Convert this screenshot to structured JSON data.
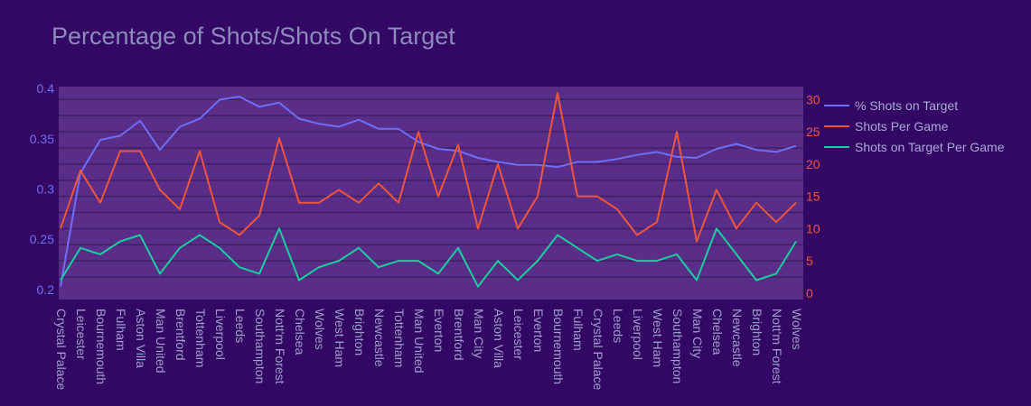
{
  "chart_data": {
    "type": "line",
    "title": "Percentage of Shots/Shots On Target",
    "xlabel": "",
    "ylabel": "",
    "legend_position": "top-right",
    "grid": true,
    "categories": [
      "Crystal Palace",
      "Leicester",
      "Bournemouth",
      "Fulham",
      "Aston Villa",
      "Man United",
      "Brentford",
      "Tottenham",
      "Liverpool",
      "Leeds",
      "Southampton",
      "Nott'm Forest",
      "Chelsea",
      "Wolves",
      "West Ham",
      "Brighton",
      "Newcastle",
      "Tottenham",
      "Man United",
      "Everton",
      "Brentford",
      "Man City",
      "Aston Villa",
      "Leicester",
      "Everton",
      "Bournemouth",
      "Fulham",
      "Crystal Palace",
      "Leeds",
      "Liverpool",
      "West Ham",
      "Southampton",
      "Man City",
      "Chelsea",
      "Newcastle",
      "Brighton",
      "Nott'm Forest",
      "Wolves"
    ],
    "y_left": {
      "range": [
        0.19,
        0.402
      ],
      "ticks": [
        0.2,
        0.25,
        0.3,
        0.35,
        0.4
      ],
      "tick_labels": [
        "0.2",
        "0.25",
        "0.3",
        "0.35",
        "0.4"
      ]
    },
    "y_right": {
      "range": [
        -1,
        32
      ],
      "ticks": [
        0,
        5,
        10,
        15,
        20,
        25,
        30
      ],
      "tick_labels": [
        "0",
        "5",
        "10",
        "15",
        "20",
        "25",
        "30"
      ]
    },
    "series": [
      {
        "name": "% Shots on Target",
        "axis": "left",
        "color": "#6f6ef7",
        "values": [
          0.203,
          0.316,
          0.349,
          0.353,
          0.368,
          0.339,
          0.362,
          0.37,
          0.389,
          0.392,
          0.382,
          0.386,
          0.37,
          0.365,
          0.362,
          0.369,
          0.36,
          0.36,
          0.347,
          0.34,
          0.338,
          0.331,
          0.327,
          0.324,
          0.324,
          0.322,
          0.327,
          0.327,
          0.33,
          0.334,
          0.337,
          0.332,
          0.331,
          0.34,
          0.345,
          0.339,
          0.337,
          0.343
        ]
      },
      {
        "name": "Shots Per Game",
        "axis": "right",
        "color": "#ef553b",
        "values": [
          10,
          19,
          14,
          22,
          22,
          16,
          13,
          22,
          11,
          9,
          12,
          24,
          14,
          14,
          16,
          14,
          17,
          14,
          25,
          15,
          23,
          10,
          20,
          10,
          15,
          31,
          15,
          15,
          13,
          9,
          11,
          25,
          8,
          16,
          10,
          14,
          11,
          14
        ]
      },
      {
        "name": "Shots on Target Per Game",
        "axis": "right",
        "color": "#19cfa0",
        "values": [
          2,
          7,
          6,
          8,
          9,
          3,
          7,
          9,
          7,
          4,
          3,
          10,
          2,
          4,
          5,
          7,
          4,
          5,
          5,
          3,
          7,
          1,
          5,
          2,
          5,
          9,
          7,
          5,
          6,
          5,
          5,
          6,
          2,
          10,
          6,
          2,
          3,
          8
        ]
      }
    ]
  }
}
